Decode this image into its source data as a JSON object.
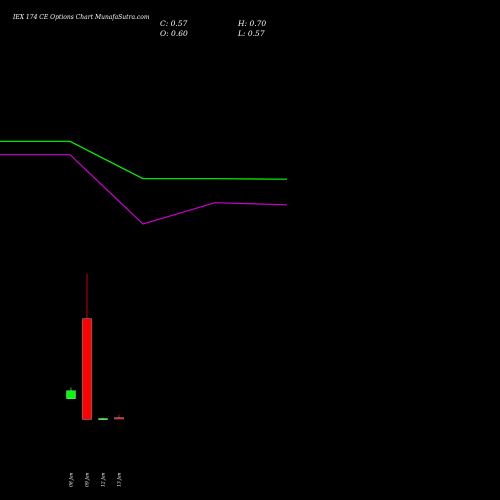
{
  "header": {
    "title": "IEX  174  CE Options  Chart MunafaSutra.com",
    "close": "C: 0.57",
    "high": "H: 0.70",
    "open": "O: 0.60",
    "low": "L: 0.57"
  },
  "colors": {
    "background": "#000000",
    "up": "#00ff00",
    "down": "#ff0000",
    "line_green": "#00ff00",
    "line_purple": "#cc00cc",
    "text": "#ffffff"
  },
  "chart_data": [
    {
      "type": "line",
      "title": "",
      "series": [
        {
          "color": "#00ff00",
          "values": [
            5.6,
            5.6,
            4.9,
            4.9,
            4.89
          ]
        },
        {
          "color": "#cc00cc",
          "values": [
            5.35,
            5.35,
            4.05,
            4.45,
            4.41
          ]
        }
      ],
      "ylim": [
        3.0,
        7.5
      ],
      "grid": false
    },
    {
      "type": "candlestick",
      "categories": [
        "08 Jan",
        "09 Jan",
        "12 Jan",
        "13 Jan"
      ],
      "candles": [
        {
          "open": 1.2,
          "high": 1.55,
          "low": 1.2,
          "close": 1.45,
          "direction": "up"
        },
        {
          "open": 3.7,
          "high": 5.1,
          "low": 0.55,
          "close": 0.55,
          "direction": "down"
        },
        {
          "open": 0.57,
          "high": 0.6,
          "low": 0.55,
          "close": 0.58,
          "direction": "up"
        },
        {
          "open": 0.6,
          "high": 0.7,
          "low": 0.57,
          "close": 0.57,
          "direction": "down"
        }
      ],
      "ylim": [
        0,
        5.6
      ],
      "grid": false
    }
  ]
}
